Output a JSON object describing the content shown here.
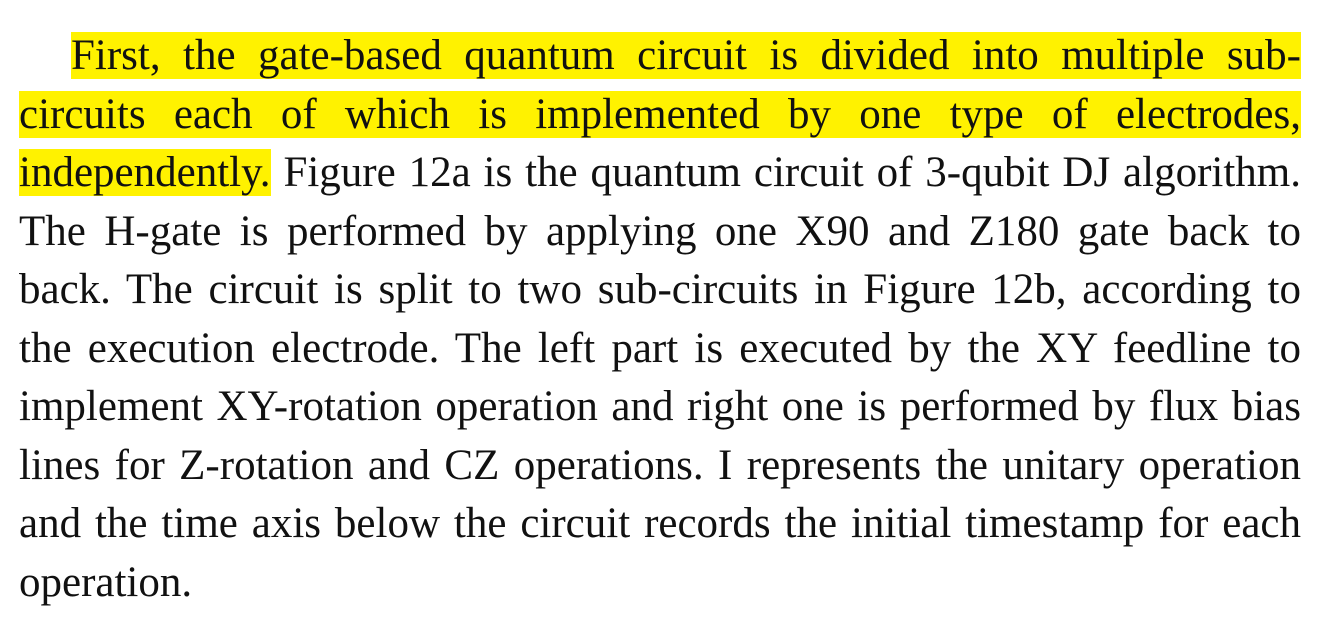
{
  "paragraph": {
    "highlighted": "First, the gate-based quantum circuit is divided into multiple sub-circuits each of which is implemented by one type of elec­trodes, independently.",
    "rest": " Figure 12a is the quantum circuit of 3-qubit DJ algorithm. The H-gate is performed by applying one X90 and Z180 gate back to back. The circuit is split to two sub-circuits in Figure 12b, according to the execution electrode. The left part is executed by the XY feedline to implement XY-rotation operation and right one is performed by flux bias lines for Z-rotation and CZ operations. I represents the unitary operation and the time axis below the circuit records the initial timestamp for each operation."
  },
  "colors": {
    "highlight": "#fff200",
    "text": "#111111"
  }
}
